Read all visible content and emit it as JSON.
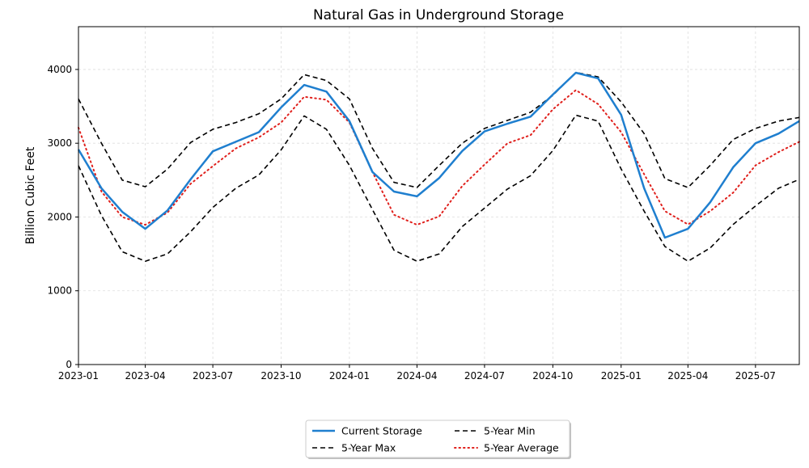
{
  "chart_data": {
    "type": "line",
    "title": "Natural Gas in Underground Storage",
    "xlabel": "",
    "ylabel": "Billion Cubic Feet",
    "xlim": [
      "2023-01-01",
      "2025-08-29"
    ],
    "ylim": [
      0,
      4580
    ],
    "grid": true,
    "legend_position": "bottom-center",
    "x_ticks": [
      "2023-01",
      "2023-04",
      "2023-07",
      "2023-10",
      "2024-01",
      "2024-04",
      "2024-07",
      "2024-10",
      "2025-01",
      "2025-04",
      "2025-07"
    ],
    "y_ticks": [
      0,
      1000,
      2000,
      3000,
      4000
    ],
    "x": [
      "2023-01-01",
      "2023-02-01",
      "2023-03-01",
      "2023-04-01",
      "2023-05-01",
      "2023-06-01",
      "2023-07-01",
      "2023-08-01",
      "2023-09-01",
      "2023-10-01",
      "2023-11-01",
      "2023-12-01",
      "2024-01-01",
      "2024-02-01",
      "2024-03-01",
      "2024-04-01",
      "2024-05-01",
      "2024-06-01",
      "2024-07-01",
      "2024-08-01",
      "2024-09-01",
      "2024-10-01",
      "2024-11-01",
      "2024-12-01",
      "2025-01-01",
      "2025-02-01",
      "2025-03-01",
      "2025-04-01",
      "2025-05-01",
      "2025-06-01",
      "2025-07-01",
      "2025-08-01",
      "2025-08-29"
    ],
    "series": [
      {
        "name": "Current Storage",
        "color": "#1f7fcf",
        "style": "solid",
        "values": [
          2915,
          2390,
          2070,
          1840,
          2090,
          2510,
          2890,
          3020,
          3150,
          3485,
          3790,
          3700,
          3300,
          2610,
          2345,
          2280,
          2530,
          2895,
          3160,
          3265,
          3360,
          3660,
          3955,
          3880,
          3385,
          2390,
          1720,
          1840,
          2200,
          2675,
          3000,
          3130,
          3300
        ]
      },
      {
        "name": "5-Year Max",
        "color": "#000000",
        "style": "dashed",
        "values": [
          3600,
          3000,
          2500,
          2410,
          2650,
          3010,
          3190,
          3280,
          3400,
          3600,
          3930,
          3850,
          3600,
          2930,
          2470,
          2400,
          2700,
          3000,
          3200,
          3310,
          3420,
          3650,
          3960,
          3900,
          3560,
          3130,
          2520,
          2400,
          2700,
          3050,
          3200,
          3300,
          3350
        ]
      },
      {
        "name": "5-Year Min",
        "color": "#000000",
        "style": "dashed",
        "values": [
          2695,
          2020,
          1530,
          1400,
          1500,
          1800,
          2130,
          2390,
          2570,
          2910,
          3370,
          3190,
          2700,
          2100,
          1550,
          1400,
          1500,
          1870,
          2120,
          2380,
          2560,
          2900,
          3380,
          3300,
          2650,
          2080,
          1600,
          1400,
          1580,
          1900,
          2150,
          2390,
          2510
        ]
      },
      {
        "name": "5-Year Average",
        "color": "#e0201c",
        "style": "dotted",
        "values": [
          3210,
          2345,
          2000,
          1895,
          2060,
          2450,
          2690,
          2930,
          3080,
          3280,
          3630,
          3590,
          3280,
          2610,
          2030,
          1895,
          2010,
          2420,
          2710,
          3000,
          3110,
          3460,
          3720,
          3530,
          3150,
          2580,
          2080,
          1900,
          2080,
          2330,
          2700,
          2880,
          3020
        ]
      }
    ],
    "legend_order": [
      0,
      2,
      1,
      3
    ]
  }
}
